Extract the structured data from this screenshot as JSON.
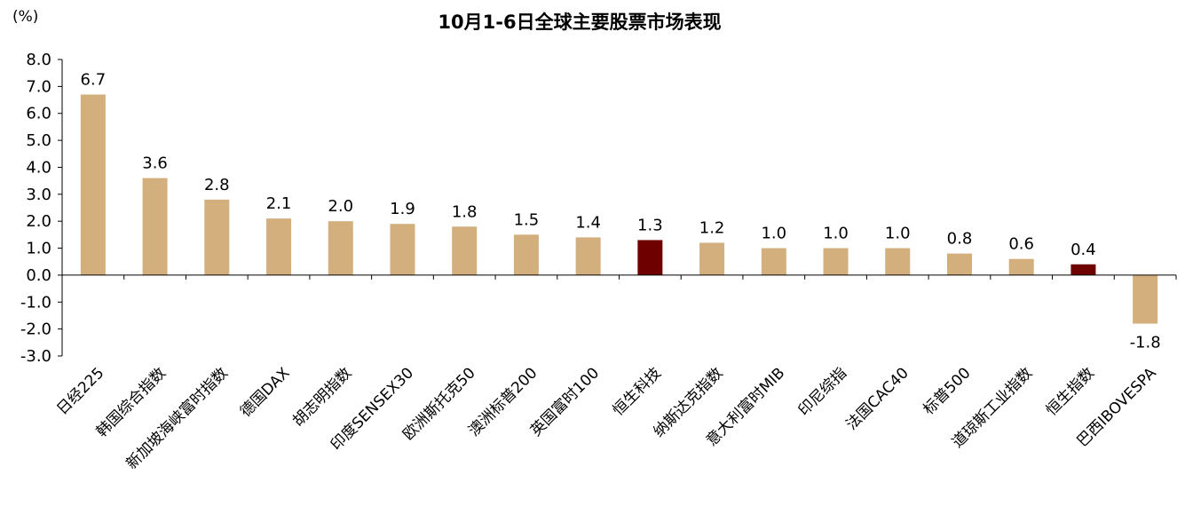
{
  "chart_data": {
    "type": "bar",
    "title": "10月1-6日全球主要股票市场表现",
    "unit_label": "(%)",
    "categories": [
      "日经225",
      "韩国综合指数",
      "新加坡海峡富时指数",
      "德国DAX",
      "胡志明指数",
      "印度SENSEX30",
      "欧洲斯托克50",
      "澳洲标普200",
      "英国富时100",
      "恒生科技",
      "纳斯达克指数",
      "意大利富时MIB",
      "印尼综指",
      "法国CAC40",
      "标普500",
      "道琼斯工业指数",
      "恒生指数",
      "巴西IBOVESPA"
    ],
    "values": [
      6.7,
      3.6,
      2.8,
      2.1,
      2.0,
      1.9,
      1.8,
      1.5,
      1.4,
      1.3,
      1.2,
      1.0,
      1.0,
      1.0,
      0.8,
      0.6,
      0.4,
      -1.8
    ],
    "value_labels": [
      "6.7",
      "3.6",
      "2.8",
      "2.1",
      "2.0",
      "1.9",
      "1.8",
      "1.5",
      "1.4",
      "1.3",
      "1.2",
      "1.0",
      "1.0",
      "1.0",
      "0.8",
      "0.6",
      "0.4",
      "-1.8"
    ],
    "ylim": [
      -3.0,
      8.0
    ],
    "yticks": [
      "8.0",
      "7.0",
      "6.0",
      "5.0",
      "4.0",
      "3.0",
      "2.0",
      "1.0",
      "0.0",
      "-1.0",
      "-2.0",
      "-3.0"
    ],
    "ytick_values": [
      8,
      7,
      6,
      5,
      4,
      3,
      2,
      1,
      0,
      -1,
      -2,
      -3
    ],
    "grid": false,
    "legend": "none",
    "colors": {
      "default": "#D2AF7D",
      "highlight": "#6E0000"
    },
    "highlight_categories": [
      "恒生科技",
      "恒生指数"
    ]
  }
}
